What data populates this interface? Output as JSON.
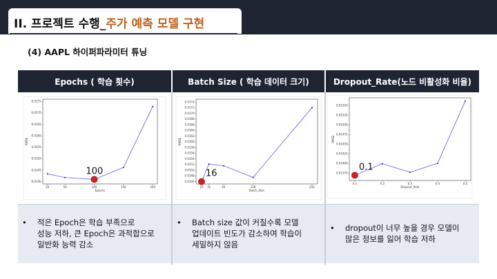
{
  "header": {
    "title_main": "II. 프로젝트 수행_",
    "title_accent": "주가 예측 모델 구현"
  },
  "subtitle": "(4) AAPL 하이퍼파라미터 튜닝",
  "columns": [
    {
      "heading": "Epochs ( 학습 횟수)",
      "optimum_label": "100",
      "bullet_lines": [
        "적은 Epoch은 학습 부족으로",
        "성능 저하, 큰 Epoch은 과적합으로",
        "일반화 능력 감소"
      ]
    },
    {
      "heading": "Batch Size ( 학습 데이터 크기)",
      "optimum_label": "16",
      "bullet_lines": [
        "Batch size  값이 커질수록 모델",
        "업데이트 빈도가 감소하여 학습이",
        "세밀하지 않음"
      ]
    },
    {
      "heading": "Dropout_Rate(노드 비활성화 비율)",
      "optimum_label": "0.1",
      "bullet_lines": [
        "dropout이 너무 높을 경우 모델이",
        "많은 정보를 잃어 학습 저하"
      ]
    }
  ],
  "bullet_symbol": "•",
  "colors": {
    "band": "#1f2433",
    "accent": "#c0601a",
    "line": "#7b7bf0",
    "marker": "#d42020",
    "cell": "#e7eaf3"
  },
  "chart_data": [
    {
      "type": "line",
      "xlabel": "Epochs",
      "ylabel": "RMSE",
      "x": [
        20,
        50,
        100,
        150,
        200
      ],
      "y": [
        0.01434,
        0.01418,
        0.0141,
        0.01462,
        0.01728
      ],
      "xticks": [
        "20",
        "50",
        "100",
        "150",
        "200"
      ],
      "yticks": [
        "0.0140",
        "0.0145",
        "0.0150",
        "0.0155",
        "0.0160",
        "0.0165",
        "0.0170",
        "0.0175"
      ],
      "xlim": [
        12,
        208
      ],
      "ylim": [
        0.0139,
        0.0176
      ],
      "grid": false
    },
    {
      "type": "line",
      "xlabel": "Batch_Size",
      "ylabel": "RMSE",
      "x": [
        16,
        32,
        64,
        128,
        256
      ],
      "y": [
        0.0146,
        0.01522,
        0.01516,
        0.01475,
        0.0172
      ],
      "xticks": [
        "16",
        "32",
        "64",
        "128",
        "256"
      ],
      "yticks": [
        "0.0146",
        "0.0148",
        "0.0150",
        "0.0152",
        "0.0154",
        "0.0156",
        "0.0158",
        "0.0160",
        "0.0162",
        "0.0164",
        "0.0166",
        "0.0168",
        "0.0170",
        "0.0172",
        "0.0174"
      ],
      "xlim": [
        4,
        268
      ],
      "ylim": [
        0.01452,
        0.0175
      ],
      "grid": false
    },
    {
      "type": "line",
      "xlabel": "Dropout_Rate",
      "ylabel": "RMSE",
      "x": [
        0.1,
        0.2,
        0.3,
        0.4,
        0.5
      ],
      "y": [
        0.013695,
        0.013995,
        0.013775,
        0.014005,
        0.01562
      ],
      "xticks": [
        "0.1",
        "0.2",
        "0.3",
        "0.4",
        "0.5"
      ],
      "yticks": [
        "0.01375",
        "0.01400",
        "0.01425",
        "0.01450",
        "0.01475",
        "0.01500",
        "0.01525",
        "0.01550"
      ],
      "xlim": [
        0.08,
        0.52
      ],
      "ylim": [
        0.01356,
        0.0157
      ],
      "grid": false
    }
  ]
}
